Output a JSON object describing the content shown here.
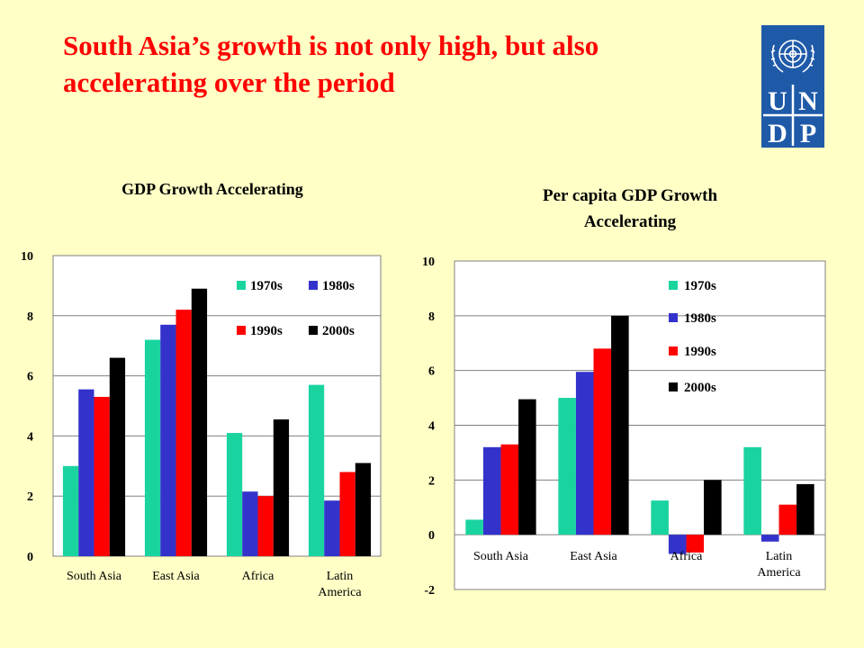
{
  "slide": {
    "title": "South Asia’s growth is not only high, but also accelerating over the period",
    "logo_text": "UNDP",
    "logo_letters": [
      "U",
      "N",
      "D",
      "P"
    ],
    "logo_color": "#1F5AA9"
  },
  "colors": {
    "background": "#FFFFC6",
    "title": "#FF0000",
    "series": [
      "#1AD4A0",
      "#3333CC",
      "#FF0000",
      "#000000"
    ]
  },
  "chart_data": [
    {
      "type": "bar",
      "title": "GDP Growth Accelerating",
      "categories": [
        "South Asia",
        "East Asia",
        "Africa",
        "Latin America"
      ],
      "series": [
        {
          "name": "1970s",
          "values": [
            3.0,
            7.2,
            4.1,
            5.7
          ]
        },
        {
          "name": "1980s",
          "values": [
            5.55,
            7.7,
            2.15,
            1.85
          ]
        },
        {
          "name": "1990s",
          "values": [
            5.3,
            8.2,
            2.0,
            2.8
          ]
        },
        {
          "name": "2000s",
          "values": [
            6.6,
            8.9,
            4.55,
            3.1
          ]
        }
      ],
      "ylim": [
        0,
        10
      ],
      "yticks": [
        0,
        2,
        4,
        6,
        8,
        10
      ],
      "grid": true,
      "legend": "top-right, two columns"
    },
    {
      "type": "bar",
      "title": "Per capita GDP Growth Accelerating",
      "categories": [
        "South Asia",
        "East Asia",
        "Africa",
        "Latin America"
      ],
      "series": [
        {
          "name": "1970s",
          "values": [
            0.55,
            5.0,
            1.25,
            3.2
          ]
        },
        {
          "name": "1980s",
          "values": [
            3.2,
            5.95,
            -0.7,
            -0.25
          ]
        },
        {
          "name": "1990s",
          "values": [
            3.3,
            6.8,
            -0.65,
            1.1
          ]
        },
        {
          "name": "2000s",
          "values": [
            4.95,
            8.0,
            2.0,
            1.85
          ]
        }
      ],
      "ylim": [
        -2,
        10
      ],
      "yticks": [
        -2,
        0,
        2,
        4,
        6,
        8,
        10
      ],
      "grid": true,
      "legend": "top-right, single column"
    }
  ]
}
